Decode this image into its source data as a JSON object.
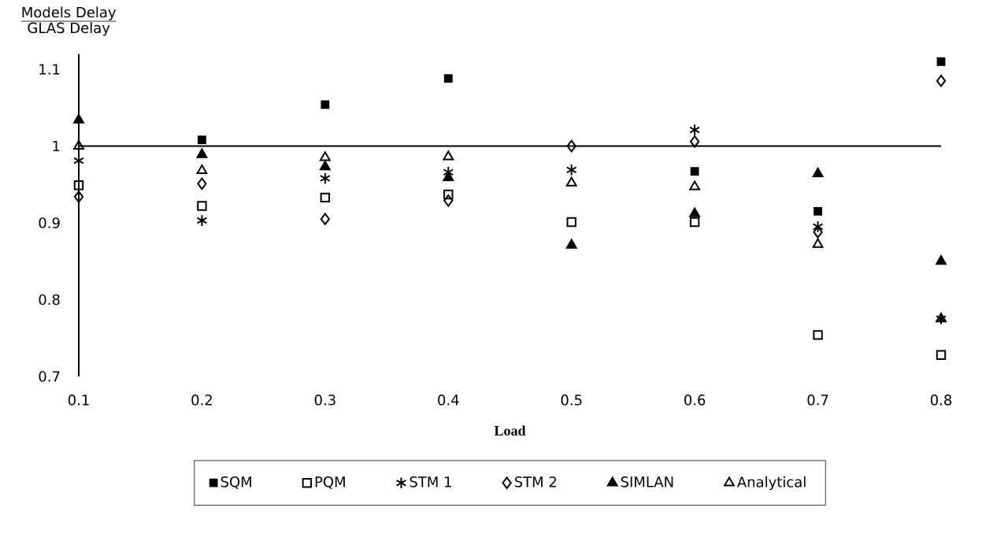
{
  "chart_data": {
    "type": "scatter",
    "xlabel": "Load",
    "ylabel": "\\frac{\\mbox{Models Delay}}{\\mbox{GLAS Delay}}",
    "x": [
      0.1,
      0.2,
      0.3,
      0.4,
      0.5,
      0.6,
      0.7,
      0.8
    ],
    "xlim": [
      0.1,
      0.8
    ],
    "ylim": [
      0.7,
      1.12
    ],
    "xticks": [
      0.1,
      0.2,
      0.3,
      0.4,
      0.5,
      0.6,
      0.7,
      0.8
    ],
    "yticks": [
      0.7,
      0.8,
      0.9,
      1,
      1.1
    ],
    "ref_lines": [
      {
        "axis": "y",
        "value": 1,
        "color": "#000000"
      }
    ],
    "legend": "bottom",
    "grid": false,
    "series": [
      {
        "name": "SQM",
        "color": "#000000",
        "marker": "square",
        "values": [
          null,
          1.008,
          1.054,
          1.088,
          null,
          0.967,
          0.915,
          1.11
        ]
      },
      {
        "name": "PQM",
        "color": "#000000",
        "marker": "square",
        "values": [
          0.949,
          0.922,
          0.933,
          0.937,
          0.901,
          0.901,
          0.754,
          0.728
        ]
      },
      {
        "name": "STM 1",
        "color": "#000000",
        "marker": "cross",
        "values": [
          0.981,
          0.903,
          0.958,
          0.966,
          0.969,
          1.021,
          0.895,
          0.775
        ]
      },
      {
        "name": "STM 2",
        "color": "#000000",
        "marker": "diamond",
        "values": [
          0.934,
          0.951,
          0.905,
          0.929,
          1.0,
          1.006,
          0.888,
          1.085
        ]
      },
      {
        "name": "SIMLAN",
        "color": "#000000",
        "marker": "triangle",
        "values": [
          1.034,
          0.989,
          0.973,
          0.959,
          0.871,
          0.912,
          0.964,
          0.85
        ]
      },
      {
        "name": "Analytical",
        "color": "#000000",
        "marker": "triangle",
        "values": [
          1.0,
          0.968,
          0.985,
          0.986,
          0.952,
          0.947,
          0.872,
          0.775
        ]
      }
    ]
  }
}
